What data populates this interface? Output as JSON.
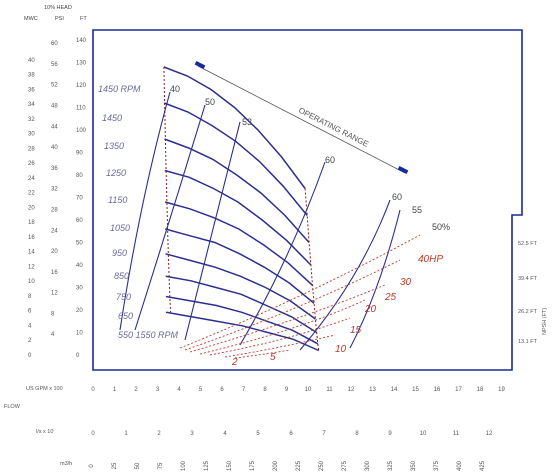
{
  "chart_data": {
    "type": "line",
    "header": {
      "head_percent": "10% HEAD",
      "unit_mwc": "MWC",
      "unit_psi": "PSI",
      "unit_ft": "FT"
    },
    "y_axis_mwc_ticks": [
      "40",
      "38",
      "36",
      "34",
      "32",
      "30",
      "28",
      "26",
      "24",
      "22",
      "20",
      "18",
      "16",
      "14",
      "12",
      "10",
      "8",
      "6",
      "4",
      "2",
      "0"
    ],
    "y_axis_psi_ticks": [
      "60",
      "56",
      "52",
      "48",
      "44",
      "40",
      "36",
      "32",
      "28",
      "24",
      "20",
      "16",
      "12",
      "8",
      "4"
    ],
    "y_axis_ft_ticks": [
      "140",
      "130",
      "120",
      "110",
      "100",
      "90",
      "80",
      "70",
      "60",
      "50",
      "40",
      "30",
      "20",
      "10",
      "0"
    ],
    "right_side_labels": [
      "52.5 FT",
      "39.4 FT",
      "26.2 FT",
      "13.1 FT"
    ],
    "right_side_title": "NPSH (FT)",
    "rpm_labels": [
      "1450 RPM",
      "1450",
      "1350",
      "1250",
      "1150",
      "1050",
      "950",
      "850",
      "750",
      "650",
      "550 1550 RPM"
    ],
    "efficiency_labels": [
      "40",
      "50",
      "53",
      "60",
      "60",
      "55",
      "50%"
    ],
    "hp_labels": [
      "40HP",
      "30",
      "25",
      "20",
      "15",
      "10",
      "5",
      "2"
    ],
    "operating_range_label": "OPERATING RANGE",
    "flow_label": "FLOW",
    "gpm_label": "US GPM x 100",
    "gpm_ticks": [
      "0",
      "1",
      "2",
      "3",
      "4",
      "5",
      "6",
      "7",
      "8",
      "9",
      "10",
      "11",
      "12",
      "13",
      "14",
      "15",
      "16",
      "17",
      "18",
      "19"
    ],
    "lps_label": "l/s x 10",
    "lps_ticks": [
      "0",
      "1",
      "2",
      "3",
      "4",
      "5",
      "6",
      "7",
      "8",
      "9",
      "10",
      "11",
      "12"
    ],
    "m3h_label": "m3/h",
    "m3h_ticks": [
      "0",
      "25",
      "50",
      "75",
      "100",
      "125",
      "150",
      "175",
      "200",
      "225",
      "250",
      "275",
      "300",
      "325",
      "350",
      "375",
      "400",
      "425"
    ],
    "speed_series": [
      {
        "rpm": 1450,
        "head_ft": [
          128,
          124,
          118,
          110,
          100,
          88,
          74
        ]
      },
      {
        "rpm": 1350,
        "head_ft": [
          112,
          108,
          102,
          95,
          86,
          75,
          62
        ]
      },
      {
        "rpm": 1250,
        "head_ft": [
          96,
          92,
          87,
          80,
          72,
          62,
          50
        ]
      },
      {
        "rpm": 1150,
        "head_ft": [
          82,
          79,
          74,
          68,
          60,
          51,
          40
        ]
      },
      {
        "rpm": 1050,
        "head_ft": [
          68,
          65,
          61,
          56,
          49,
          41,
          31
        ]
      },
      {
        "rpm": 950,
        "head_ft": [
          56,
          53,
          50,
          45,
          39,
          32,
          23
        ]
      },
      {
        "rpm": 850,
        "head_ft": [
          45,
          42,
          39,
          35,
          30,
          24,
          16
        ]
      },
      {
        "rpm": 750,
        "head_ft": [
          35,
          33,
          30,
          27,
          22,
          17,
          10
        ]
      },
      {
        "rpm": 650,
        "head_ft": [
          26,
          24,
          22,
          19,
          15,
          11,
          5
        ]
      },
      {
        "rpm": 550,
        "head_ft": [
          19,
          17,
          15,
          13,
          10,
          7,
          2
        ]
      }
    ],
    "xlim_gpm": [
      0,
      19
    ],
    "ylim_ft": [
      0,
      140
    ]
  }
}
